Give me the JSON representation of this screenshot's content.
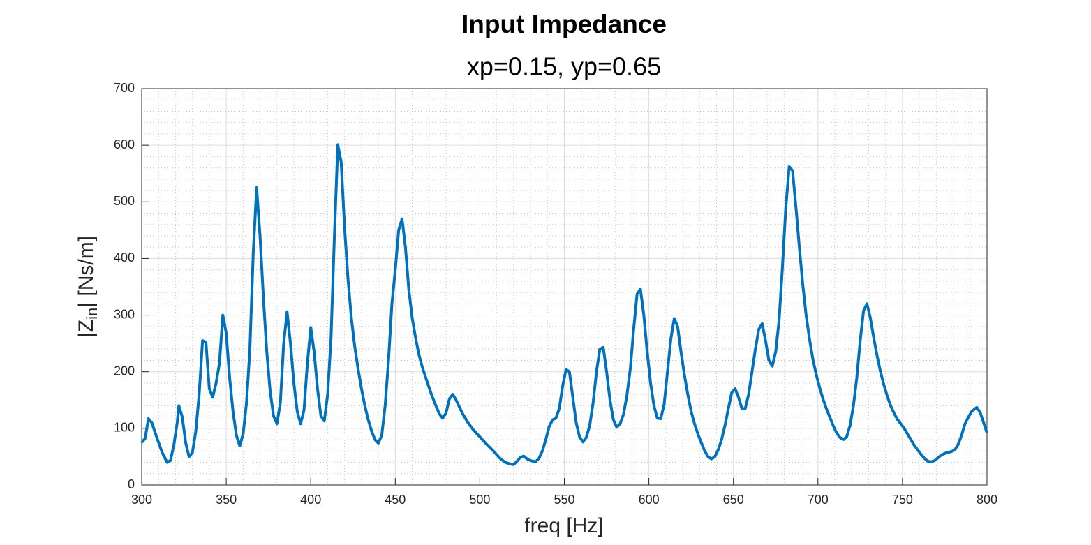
{
  "chart_data": {
    "type": "line",
    "title": "Input Impedance",
    "subtitle": "xp=0.15, yp=0.65",
    "xlabel": "freq [Hz]",
    "ylabel": [
      "|Z",
      "in",
      "| [Ns/m]"
    ],
    "xlim": [
      300,
      800
    ],
    "ylim": [
      0,
      700
    ],
    "xticks": [
      300,
      350,
      400,
      450,
      500,
      550,
      600,
      650,
      700,
      750,
      800
    ],
    "yticks": [
      0,
      100,
      200,
      300,
      400,
      500,
      600,
      700
    ],
    "grid": true,
    "minor_grid": true,
    "x": [
      300,
      302,
      304,
      306,
      308,
      310,
      312,
      315,
      317,
      319,
      321,
      322,
      324,
      326,
      328,
      330,
      332,
      334,
      336,
      338,
      340,
      342,
      344,
      346,
      348,
      350,
      352,
      354,
      356,
      358,
      360,
      362,
      364,
      366,
      368,
      370,
      372,
      374,
      376,
      378,
      380,
      382,
      384,
      386,
      388,
      390,
      392,
      394,
      396,
      398,
      400,
      402,
      404,
      406,
      408,
      410,
      412,
      414,
      416,
      418,
      420,
      422,
      424,
      426,
      428,
      430,
      432,
      434,
      436,
      438,
      440,
      442,
      444,
      446,
      448,
      450,
      452,
      454,
      456,
      458,
      460,
      462,
      464,
      466,
      468,
      470,
      472,
      474,
      476,
      478,
      480,
      482,
      484,
      486,
      488,
      490,
      493,
      496,
      500,
      504,
      508,
      512,
      515,
      518,
      520,
      522,
      524,
      526,
      528,
      530,
      533,
      535,
      537,
      539,
      541,
      543,
      545,
      547,
      549,
      551,
      553,
      555,
      557,
      559,
      561,
      563,
      565,
      567,
      569,
      571,
      573,
      575,
      577,
      579,
      581,
      583,
      585,
      587,
      589,
      591,
      593,
      595,
      597,
      599,
      601,
      603,
      605,
      607,
      609,
      611,
      613,
      615,
      617,
      619,
      621,
      623,
      625,
      627,
      629,
      631,
      633,
      635,
      637,
      639,
      641,
      643,
      645,
      647,
      649,
      651,
      653,
      655,
      657,
      659,
      661,
      663,
      665,
      667,
      669,
      671,
      673,
      675,
      677,
      679,
      681,
      683,
      685,
      687,
      689,
      691,
      693,
      695,
      697,
      699,
      701,
      703,
      705,
      707,
      709,
      711,
      713,
      715,
      717,
      719,
      721,
      723,
      725,
      727,
      729,
      731,
      733,
      735,
      737,
      739,
      741,
      743,
      745,
      747,
      749,
      751,
      753,
      755,
      757,
      759,
      761,
      763,
      765,
      767,
      769,
      771,
      773,
      776,
      779,
      781,
      783,
      785,
      787,
      789,
      791,
      793,
      794,
      796,
      798,
      800
    ],
    "series": [
      {
        "color": "#0072BD",
        "values": [
          75,
          82,
          117,
          110,
          92,
          75,
          58,
          40,
          43,
          70,
          110,
          140,
          120,
          75,
          50,
          57,
          95,
          160,
          255,
          252,
          170,
          155,
          180,
          215,
          300,
          268,
          190,
          130,
          88,
          69,
          90,
          145,
          240,
          410,
          525,
          440,
          330,
          235,
          165,
          122,
          108,
          145,
          250,
          306,
          250,
          180,
          130,
          108,
          132,
          215,
          278,
          235,
          170,
          122,
          113,
          160,
          260,
          440,
          601,
          570,
          455,
          365,
          295,
          245,
          205,
          170,
          140,
          115,
          95,
          80,
          74,
          88,
          140,
          220,
          320,
          380,
          450,
          470,
          420,
          345,
          295,
          260,
          230,
          208,
          190,
          172,
          155,
          140,
          126,
          118,
          127,
          152,
          160,
          150,
          137,
          125,
          110,
          98,
          85,
          72,
          60,
          47,
          40,
          37,
          36,
          42,
          49,
          51,
          46,
          43,
          41,
          47,
          60,
          80,
          103,
          115,
          118,
          135,
          175,
          204,
          200,
          155,
          110,
          85,
          76,
          84,
          105,
          145,
          200,
          240,
          243,
          200,
          150,
          115,
          102,
          108,
          125,
          158,
          205,
          275,
          337,
          346,
          300,
          235,
          180,
          140,
          118,
          117,
          142,
          200,
          258,
          294,
          280,
          235,
          195,
          160,
          130,
          108,
          90,
          75,
          60,
          50,
          46,
          50,
          62,
          80,
          105,
          135,
          163,
          170,
          155,
          135,
          135,
          160,
          200,
          240,
          275,
          285,
          255,
          220,
          210,
          235,
          290,
          385,
          490,
          562,
          555,
          490,
          420,
          355,
          300,
          258,
          222,
          195,
          172,
          152,
          135,
          120,
          105,
          92,
          84,
          80,
          85,
          105,
          140,
          190,
          255,
          308,
          320,
          295,
          260,
          228,
          200,
          177,
          157,
          140,
          127,
          116,
          108,
          100,
          90,
          80,
          70,
          62,
          54,
          47,
          42,
          41,
          43,
          48,
          53,
          57,
          59,
          62,
          72,
          88,
          108,
          120,
          130,
          135,
          137,
          128,
          110,
          92
        ]
      }
    ]
  }
}
